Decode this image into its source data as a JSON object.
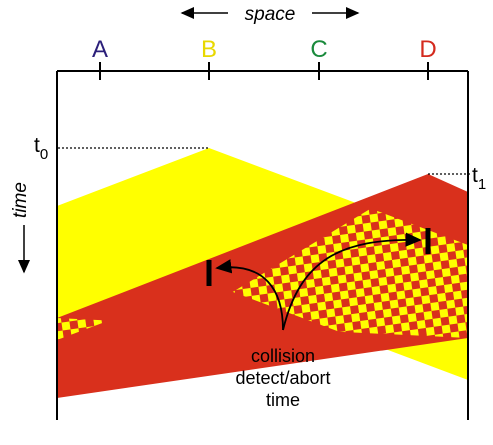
{
  "space_label": "space",
  "time_label": "time",
  "stations": [
    {
      "name": "A",
      "color": "#2b1f7a"
    },
    {
      "name": "B",
      "color": "#e8d800"
    },
    {
      "name": "C",
      "color": "#1a8a3c"
    },
    {
      "name": "D",
      "color": "#d42a1e"
    }
  ],
  "t0": {
    "base": "t",
    "sub": "0"
  },
  "t1": {
    "base": "t",
    "sub": "1"
  },
  "collision_label": [
    "collision",
    "detect/abort",
    "time"
  ],
  "colors": {
    "yellow": "#ffff00",
    "red": "#d9301c",
    "line": "#000000"
  }
}
